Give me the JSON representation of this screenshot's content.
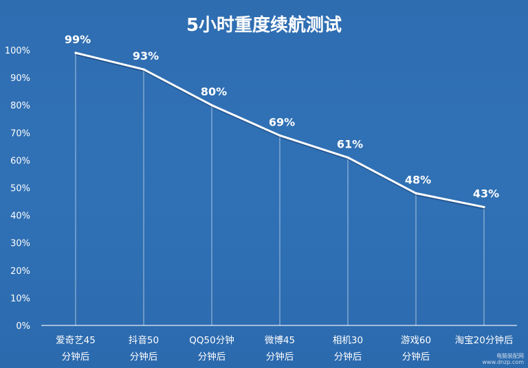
{
  "chart_data": {
    "type": "line",
    "title": "5小时重度续航测试",
    "categories": [
      [
        "爱奇艺45",
        "分钟后"
      ],
      [
        "抖音50",
        "分钟后"
      ],
      [
        "QQ50分钟",
        "分钟后"
      ],
      [
        "微博45",
        "分钟后"
      ],
      [
        "相机30",
        "分钟后"
      ],
      [
        "游戏60",
        "分钟后"
      ],
      [
        "淘宝20分钟后",
        ""
      ]
    ],
    "values": [
      99,
      93,
      80,
      69,
      61,
      48,
      43
    ],
    "data_labels": [
      "99%",
      "93%",
      "80%",
      "69%",
      "61%",
      "48%",
      "43%"
    ],
    "y_ticks": [
      0,
      10,
      20,
      30,
      40,
      50,
      60,
      70,
      80,
      90,
      100
    ],
    "y_tick_labels": [
      "0%",
      "10%",
      "20%",
      "30%",
      "40%",
      "50%",
      "60%",
      "70%",
      "80%",
      "90%",
      "100%"
    ],
    "ylim": [
      0,
      100
    ],
    "grid": false,
    "drop_lines": true,
    "line_color": "#ffffff",
    "background_color": "#2f6fb3"
  },
  "watermark": {
    "line1": "电脑装配网",
    "line2": "www.dnzp.com"
  }
}
